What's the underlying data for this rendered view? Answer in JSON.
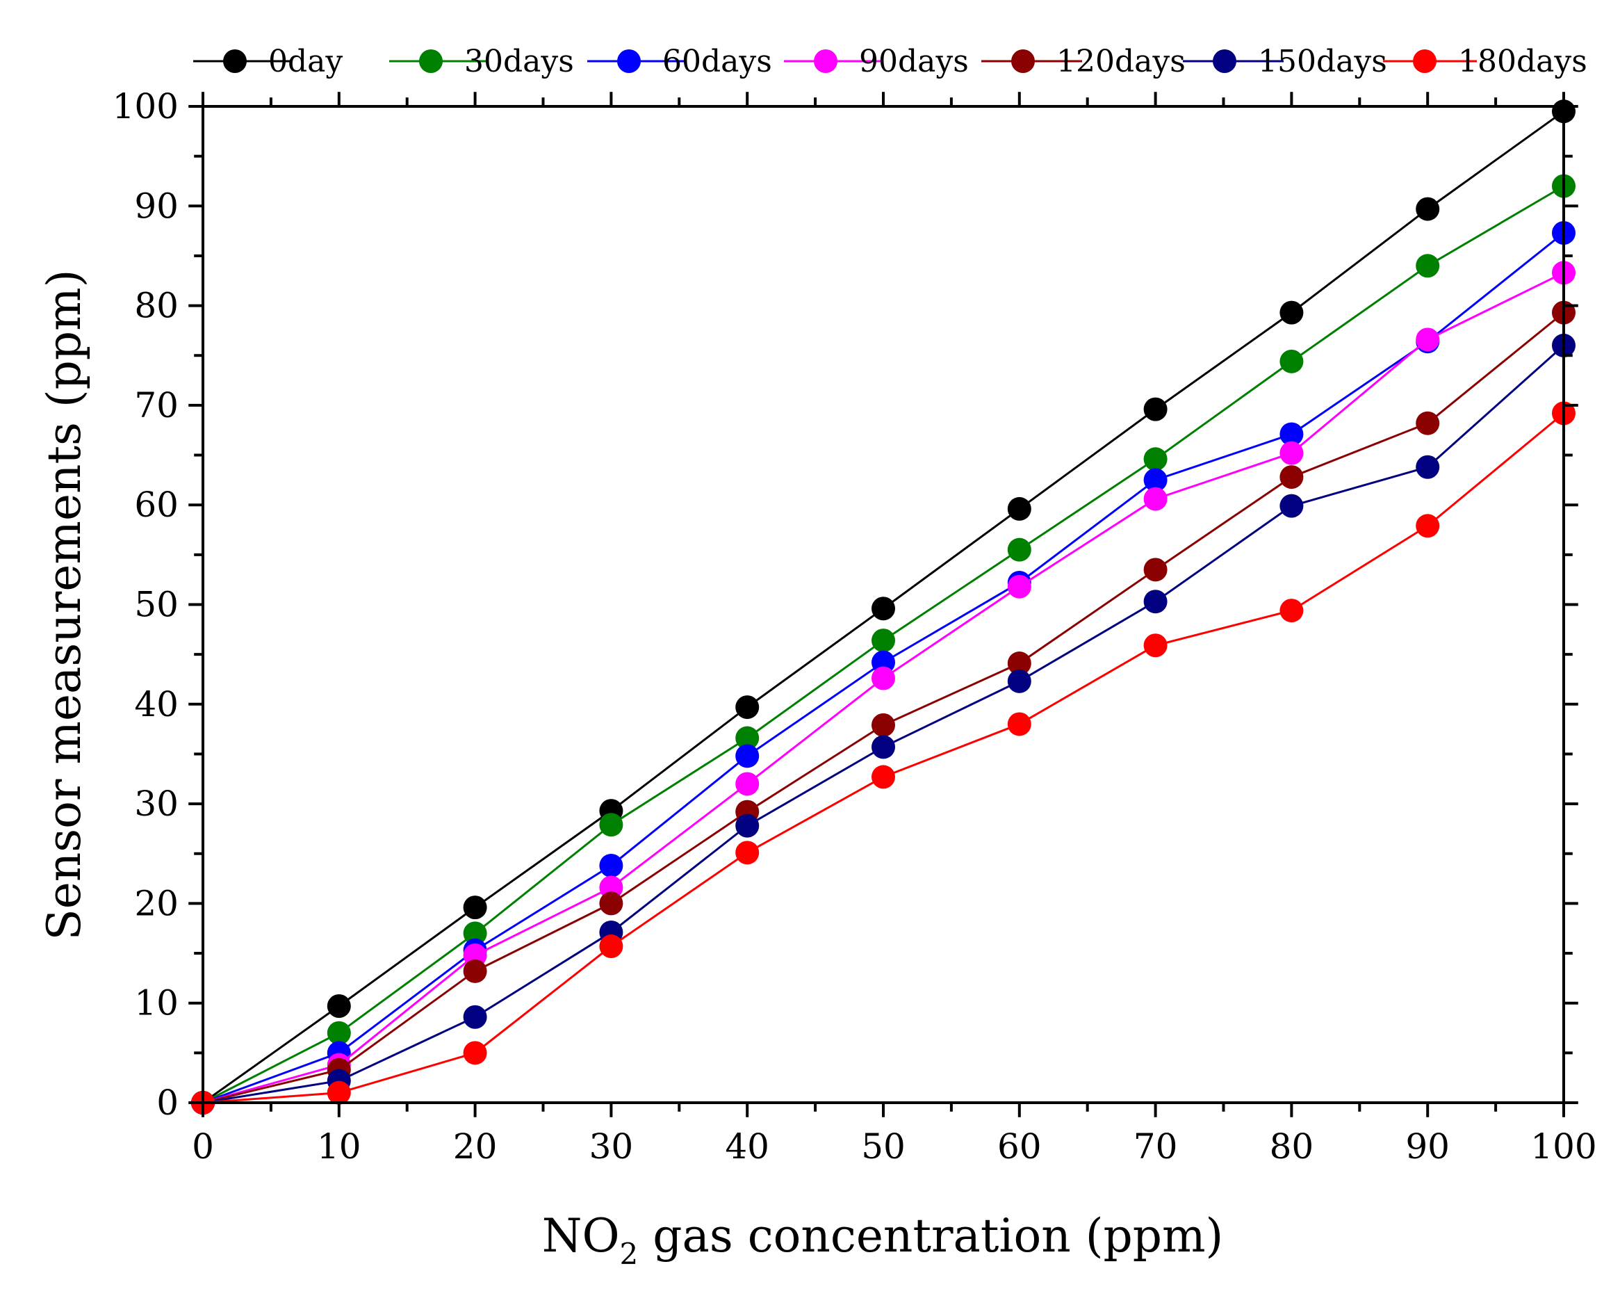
{
  "chart_data": {
    "type": "line",
    "title": "",
    "xlabel": "NO",
    "xlabel_sub": "2",
    "xlabel_rest": " gas concentration (ppm)",
    "ylabel": "Sensor measurements (ppm)",
    "xlim": [
      0,
      100
    ],
    "ylim": [
      0,
      100
    ],
    "xticks": [
      0,
      10,
      20,
      30,
      40,
      50,
      60,
      70,
      80,
      90,
      100
    ],
    "yticks": [
      0,
      10,
      20,
      30,
      40,
      50,
      60,
      70,
      80,
      90,
      100
    ],
    "grid": false,
    "legend_position": "top",
    "x": [
      0,
      10,
      20,
      30,
      40,
      50,
      60,
      70,
      80,
      90,
      100
    ],
    "series": [
      {
        "name": "0day",
        "color": "#000000",
        "values": [
          0,
          9.7,
          19.6,
          29.3,
          39.7,
          49.6,
          59.6,
          69.6,
          79.3,
          89.7,
          99.5
        ]
      },
      {
        "name": "30days",
        "color": "#008000",
        "values": [
          0,
          7.0,
          17.0,
          27.9,
          36.6,
          46.4,
          55.5,
          64.6,
          74.4,
          84.0,
          92.0
        ]
      },
      {
        "name": "60days",
        "color": "#0000FF",
        "values": [
          0,
          5.0,
          15.3,
          23.8,
          34.8,
          44.2,
          52.2,
          62.5,
          67.1,
          76.4,
          87.3
        ]
      },
      {
        "name": "90days",
        "color": "#FF00FF",
        "values": [
          0,
          3.8,
          14.8,
          21.6,
          32.0,
          42.6,
          51.8,
          60.6,
          65.2,
          76.6,
          83.3
        ]
      },
      {
        "name": "120days",
        "color": "#8B0000",
        "values": [
          0,
          3.3,
          13.2,
          20.0,
          29.2,
          37.9,
          44.1,
          53.5,
          62.8,
          68.2,
          79.3
        ]
      },
      {
        "name": "150days",
        "color": "#000080",
        "values": [
          0,
          2.2,
          8.6,
          17.1,
          27.8,
          35.7,
          42.3,
          50.3,
          59.9,
          63.8,
          76.0
        ]
      },
      {
        "name": "180days",
        "color": "#FF0000",
        "values": [
          0,
          1.0,
          5.0,
          15.7,
          25.1,
          32.7,
          38.0,
          45.9,
          49.4,
          57.9,
          69.2
        ]
      }
    ]
  }
}
